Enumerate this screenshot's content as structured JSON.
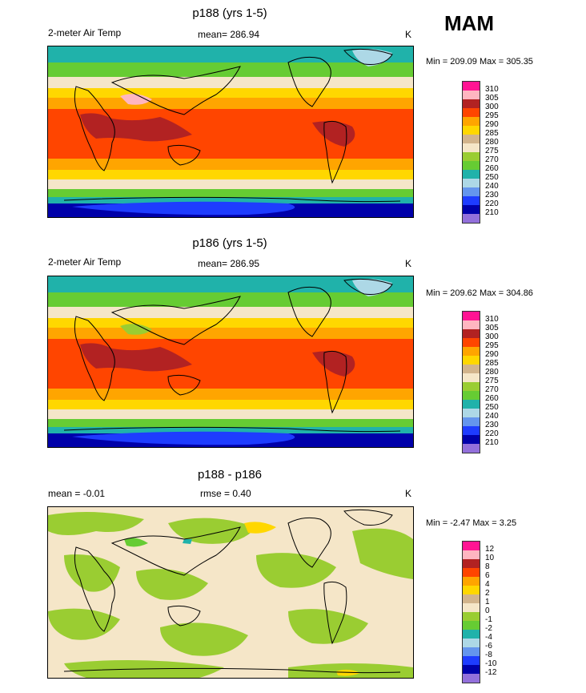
{
  "season": "MAM",
  "panels": [
    {
      "title": "p188 (yrs 1-5)",
      "left_label": "2-meter Air Temp",
      "mean_label": "mean= 286.94",
      "unit": "K",
      "minmax": "Min = 209.09 Max = 305.35",
      "legend": {
        "labels": [
          "310",
          "305",
          "300",
          "295",
          "290",
          "285",
          "280",
          "275",
          "270",
          "260",
          "250",
          "240",
          "230",
          "220",
          "210"
        ],
        "colors": [
          "#ff1493",
          "#ffb6c1",
          "#b22222",
          "#ff4500",
          "#ffa500",
          "#ffd700",
          "#d2b48c",
          "#f5e6c8",
          "#9acd32",
          "#66cc33",
          "#20b2aa",
          "#add8e6",
          "#6495ed",
          "#1e3cff",
          "#0000aa",
          "#9370db"
        ]
      }
    },
    {
      "title": "p186 (yrs 1-5)",
      "left_label": "2-meter Air Temp",
      "mean_label": "mean= 286.95",
      "unit": "K",
      "minmax": "Min = 209.62 Max = 304.86",
      "legend": {
        "labels": [
          "310",
          "305",
          "300",
          "295",
          "290",
          "285",
          "280",
          "275",
          "270",
          "260",
          "250",
          "240",
          "230",
          "220",
          "210"
        ],
        "colors": [
          "#ff1493",
          "#ffb6c1",
          "#b22222",
          "#ff4500",
          "#ffa500",
          "#ffd700",
          "#d2b48c",
          "#f5e6c8",
          "#9acd32",
          "#66cc33",
          "#20b2aa",
          "#add8e6",
          "#6495ed",
          "#1e3cff",
          "#0000aa",
          "#9370db"
        ]
      }
    },
    {
      "title": "p188 - p186",
      "left_label": "mean =  -0.01",
      "mean_label": "rmse =  0.40",
      "unit": "K",
      "minmax": "Min =  -2.47 Max =   3.25",
      "legend": {
        "labels": [
          "12",
          "10",
          "8",
          "6",
          "4",
          "2",
          "1",
          "0",
          "-1",
          "-2",
          "-4",
          "-6",
          "-8",
          "-10",
          "-12"
        ],
        "colors": [
          "#ff1493",
          "#ffb6c1",
          "#b22222",
          "#ff4500",
          "#ffa500",
          "#ffd700",
          "#d2b48c",
          "#f5e6c8",
          "#9acd32",
          "#66cc33",
          "#20b2aa",
          "#add8e6",
          "#6495ed",
          "#1e3cff",
          "#0000aa",
          "#9370db"
        ]
      }
    }
  ]
}
